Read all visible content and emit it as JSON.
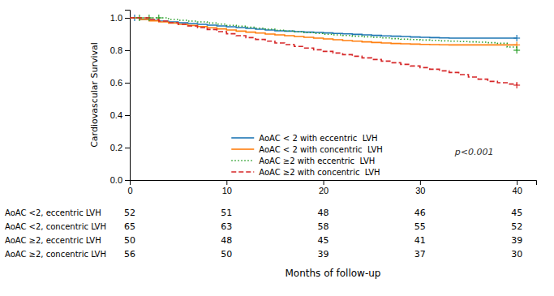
{
  "chart_data": {
    "type": "step",
    "xlabel": "Months of follow-up",
    "ylabel": "Cardiovascular Survival",
    "xlim": [
      0,
      42
    ],
    "ylim": [
      0.0,
      1.05
    ],
    "xticks": [
      0,
      10,
      20,
      30,
      40
    ],
    "yticks": [
      {
        "value": 0.0,
        "label": "0.0"
      },
      0.2,
      0.4,
      0.6,
      0.8,
      {
        "value": 1.0,
        "label": "1.0"
      }
    ],
    "grid": false,
    "legend": "lower left",
    "marker": "plus",
    "annotations": [
      {
        "text": "p<0.001"
      }
    ],
    "series": [
      {
        "name": "AoAC < 2 with eccentric  LVH",
        "line_style": "solid",
        "x": [
          0,
          0.5,
          1,
          2,
          3,
          4,
          5,
          6,
          7,
          8,
          9,
          10,
          11,
          12,
          13,
          14,
          15,
          16,
          17,
          18,
          19,
          20,
          21,
          22,
          23,
          24,
          25,
          26,
          27,
          28,
          29,
          30,
          31,
          32,
          33,
          34,
          35,
          36,
          37,
          38,
          39,
          40
        ],
        "values": [
          1.0,
          1.0,
          0.99,
          0.985,
          0.98,
          0.975,
          0.97,
          0.965,
          0.96,
          0.955,
          0.95,
          0.945,
          0.94,
          0.935,
          0.93,
          0.925,
          0.92,
          0.918,
          0.915,
          0.912,
          0.91,
          0.907,
          0.904,
          0.901,
          0.898,
          0.895,
          0.892,
          0.889,
          0.887,
          0.885,
          0.882,
          0.88,
          0.878,
          0.876,
          0.875,
          0.875,
          0.875,
          0.875,
          0.875,
          0.875,
          0.875,
          0.875
        ],
        "censored_x": [
          0.5,
          40
        ],
        "censored_values": [
          1.0,
          0.875
        ]
      },
      {
        "name": "AoAC < 2 with concentric  LVH",
        "line_style": "solid",
        "x": [
          0,
          0.5,
          1,
          2,
          3,
          4,
          5,
          6,
          7,
          8,
          9,
          10,
          11,
          12,
          13,
          14,
          15,
          16,
          17,
          18,
          19,
          20,
          21,
          22,
          23,
          24,
          25,
          26,
          27,
          28,
          29,
          30,
          31,
          32,
          33,
          34,
          35,
          36,
          37,
          38,
          39,
          40
        ],
        "values": [
          1.0,
          1.0,
          0.99,
          0.982,
          0.975,
          0.968,
          0.96,
          0.953,
          0.946,
          0.939,
          0.932,
          0.925,
          0.918,
          0.912,
          0.906,
          0.9,
          0.895,
          0.89,
          0.885,
          0.88,
          0.875,
          0.87,
          0.865,
          0.86,
          0.856,
          0.852,
          0.848,
          0.845,
          0.842,
          0.84,
          0.838,
          0.836,
          0.835,
          0.834,
          0.833,
          0.833,
          0.833,
          0.833,
          0.833,
          0.833,
          0.833,
          0.833
        ],
        "censored_x": [
          40
        ],
        "censored_values": [
          0.833
        ]
      },
      {
        "name": "AoAC ≥2 with eccentric  LVH",
        "line_style": "dotted",
        "x": [
          0,
          1,
          2,
          3,
          4,
          5,
          6,
          7,
          8,
          9,
          10,
          11,
          12,
          13,
          14,
          15,
          16,
          17,
          18,
          19,
          20,
          21,
          22,
          23,
          24,
          25,
          26,
          27,
          28,
          29,
          30,
          31,
          32,
          33,
          34,
          35,
          36,
          37,
          38,
          39,
          40
        ],
        "values": [
          1.0,
          1.0,
          1.0,
          1.0,
          0.99,
          0.985,
          0.98,
          0.975,
          0.968,
          0.961,
          0.954,
          0.948,
          0.942,
          0.936,
          0.93,
          0.924,
          0.919,
          0.914,
          0.909,
          0.904,
          0.899,
          0.895,
          0.891,
          0.887,
          0.883,
          0.88,
          0.876,
          0.872,
          0.869,
          0.866,
          0.863,
          0.861,
          0.858,
          0.856,
          0.854,
          0.852,
          0.85,
          0.847,
          0.843,
          0.82,
          0.8
        ],
        "censored_x": [
          1,
          2,
          3,
          40
        ],
        "censored_values": [
          1.0,
          1.0,
          1.0,
          0.8
        ]
      },
      {
        "name": "AoAC ≥2 with concentric  LVH",
        "line_style": "dashed",
        "x": [
          0,
          1,
          2,
          3,
          4,
          5,
          6,
          7,
          8,
          9,
          10,
          11,
          12,
          13,
          14,
          15,
          16,
          17,
          18,
          19,
          20,
          21,
          22,
          23,
          24,
          25,
          26,
          27,
          28,
          29,
          30,
          31,
          32,
          33,
          34,
          35,
          36,
          37,
          38,
          39,
          40
        ],
        "values": [
          1.0,
          1.0,
          0.99,
          0.98,
          0.97,
          0.96,
          0.95,
          0.94,
          0.928,
          0.915,
          0.902,
          0.89,
          0.878,
          0.867,
          0.856,
          0.845,
          0.835,
          0.824,
          0.814,
          0.803,
          0.793,
          0.783,
          0.773,
          0.763,
          0.753,
          0.743,
          0.733,
          0.723,
          0.713,
          0.703,
          0.693,
          0.683,
          0.673,
          0.663,
          0.65,
          0.635,
          0.622,
          0.608,
          0.6,
          0.592,
          0.585
        ],
        "censored_x": [
          40
        ],
        "censored_values": [
          0.585
        ]
      }
    ],
    "table": {
      "row_labels": [
        "AoAC <2, eccentric LVH",
        "AoAC <2, concentric LVH",
        "AoAC ≥2, eccentric LVH",
        "AoAC ≥2, concentric LVH"
      ],
      "x": [
        0,
        10,
        20,
        30,
        40
      ],
      "rows": [
        [
          52,
          51,
          48,
          46,
          45
        ],
        [
          65,
          63,
          58,
          55,
          52
        ],
        [
          50,
          48,
          45,
          41,
          39
        ],
        [
          56,
          50,
          39,
          37,
          30
        ]
      ]
    }
  }
}
